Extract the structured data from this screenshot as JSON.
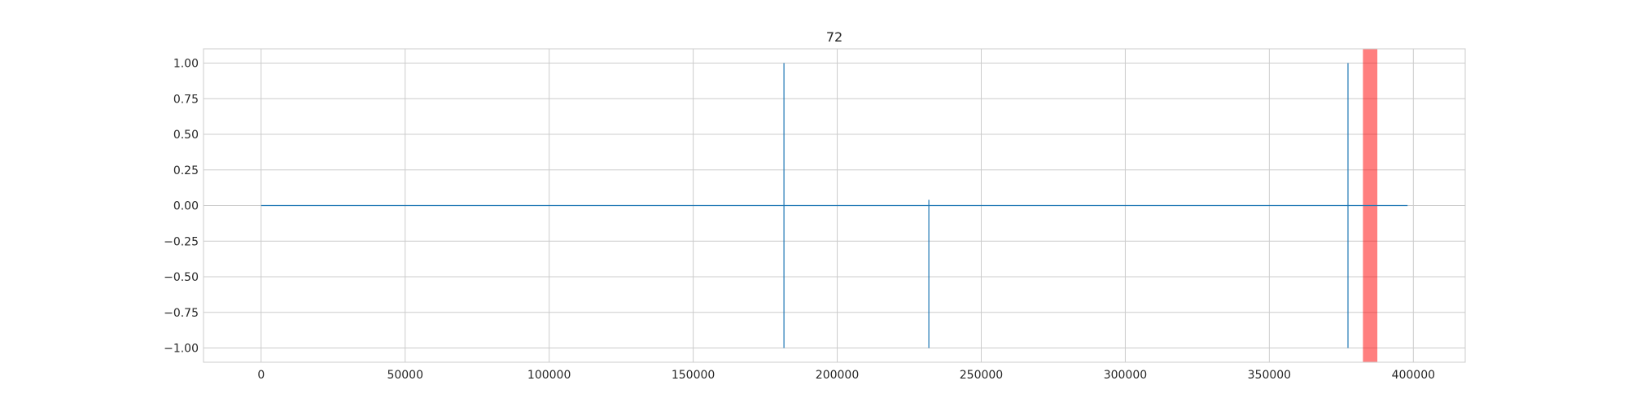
{
  "chart_data": {
    "type": "line",
    "title": "72",
    "xlabel": "",
    "ylabel": "",
    "xlim": [
      -20000,
      418000
    ],
    "ylim": [
      -1.1,
      1.1
    ],
    "xticks": [
      0,
      50000,
      100000,
      150000,
      200000,
      250000,
      300000,
      350000,
      400000
    ],
    "xtick_labels": [
      "0",
      "50000",
      "100000",
      "150000",
      "200000",
      "250000",
      "300000",
      "350000",
      "400000"
    ],
    "yticks": [
      1.0,
      0.75,
      0.5,
      0.25,
      0.0,
      -0.25,
      -0.5,
      -0.75,
      -1.0
    ],
    "ytick_labels": [
      "1.00",
      "0.75",
      "0.50",
      "0.25",
      "0.00",
      "−0.25",
      "−0.50",
      "−0.75",
      "−1.00"
    ],
    "grid": true,
    "series": [
      {
        "color": "#1f77b4",
        "x": [
          0,
          181500,
          181500,
          181500,
          181500,
          231800,
          231800,
          231800,
          231800,
          377300,
          377300,
          377300,
          377300,
          398000
        ],
        "y": [
          0,
          0,
          1.0,
          -1.0,
          0,
          0,
          0.04,
          -1.0,
          0,
          0,
          1.0,
          -1.0,
          0,
          0
        ]
      }
    ],
    "highlight_span": {
      "x": [
        382500,
        387500
      ],
      "color": "#ff0000",
      "alpha": 0.5
    },
    "colors": {
      "line": "#1f77b4",
      "grid": "#cccccc",
      "frame": "#cccccc",
      "text": "#262626"
    }
  }
}
